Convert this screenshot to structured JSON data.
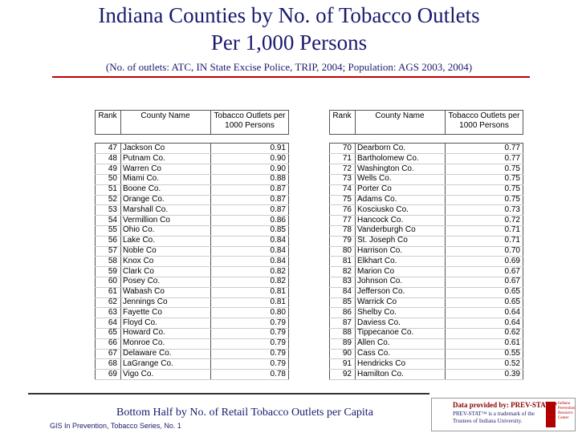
{
  "header": {
    "title_line1": "Indiana Counties by No. of Tobacco Outlets",
    "title_line2": "Per 1,000 Persons",
    "subtitle": "(No. of outlets:  ATC, IN State Excise Police, TRIP, 2004; Population: AGS 2003, 2004)"
  },
  "columns": [
    "Rank",
    "County Name",
    "Tobacco Outlets per 1000 Persons"
  ],
  "tables": [
    {
      "rows": [
        [
          47,
          "Jackson Co",
          "0.91"
        ],
        [
          48,
          "Putnam Co.",
          "0.90"
        ],
        [
          49,
          "Warren Co",
          "0.90"
        ],
        [
          50,
          "Miami Co.",
          "0.88"
        ],
        [
          51,
          "Boone Co.",
          "0.87"
        ],
        [
          52,
          "Orange Co.",
          "0.87"
        ],
        [
          53,
          "Marshall Co.",
          "0.87"
        ],
        [
          54,
          "Vermillion Co",
          "0.86"
        ],
        [
          55,
          "Ohio Co.",
          "0.85"
        ],
        [
          56,
          "Lake Co.",
          "0.84"
        ],
        [
          57,
          "Noble Co",
          "0.84"
        ],
        [
          58,
          "Knox Co",
          "0.84"
        ],
        [
          59,
          "Clark Co",
          "0.82"
        ],
        [
          60,
          "Posey Co.",
          "0.82"
        ],
        [
          61,
          "Wabash Co",
          "0.81"
        ],
        [
          62,
          "Jennings Co",
          "0.81"
        ],
        [
          63,
          "Fayette Co",
          "0.80"
        ],
        [
          64,
          "Floyd Co.",
          "0.79"
        ],
        [
          65,
          "Howard Co.",
          "0.79"
        ],
        [
          66,
          "Monroe Co.",
          "0.79"
        ],
        [
          67,
          "Delaware Co.",
          "0.79"
        ],
        [
          68,
          "LaGrange Co.",
          "0.79"
        ],
        [
          69,
          "Vigo Co.",
          "0.78"
        ]
      ]
    },
    {
      "rows": [
        [
          70,
          "Dearborn Co.",
          "0.77"
        ],
        [
          71,
          "Bartholomew Co.",
          "0.77"
        ],
        [
          72,
          "Washington Co.",
          "0.75"
        ],
        [
          73,
          "Wells Co.",
          "0.75"
        ],
        [
          74,
          "Porter Co",
          "0.75"
        ],
        [
          75,
          "Adams Co.",
          "0.75"
        ],
        [
          76,
          "Kosciusko Co.",
          "0.73"
        ],
        [
          77,
          "Hancock Co.",
          "0.72"
        ],
        [
          78,
          "Vanderburgh Co",
          "0.71"
        ],
        [
          79,
          "St. Joseph Co",
          "0.71"
        ],
        [
          80,
          "Harrison Co.",
          "0.70"
        ],
        [
          81,
          "Elkhart Co.",
          "0.69"
        ],
        [
          82,
          "Marion Co",
          "0.67"
        ],
        [
          83,
          "Johnson Co.",
          "0.67"
        ],
        [
          84,
          "Jefferson Co.",
          "0.65"
        ],
        [
          85,
          "Warrick Co",
          "0.65"
        ],
        [
          86,
          "Shelby Co.",
          "0.64"
        ],
        [
          87,
          "Daviess Co.",
          "0.64"
        ],
        [
          88,
          "Tippecanoe Co.",
          "0.62"
        ],
        [
          89,
          "Allen Co.",
          "0.61"
        ],
        [
          90,
          "Cass Co.",
          "0.55"
        ],
        [
          91,
          "Hendricks Co",
          "0.52"
        ],
        [
          92,
          "Hamilton Co.",
          "0.39"
        ]
      ]
    }
  ],
  "footer": {
    "caption": "Bottom Half by No. of Retail Tobacco Outlets per Capita",
    "series": "GIS In Prevention, Tobacco Series, No. 1",
    "provided": "Data provided by: PREV-STAT™",
    "trademark": "PREV-STAT™ is a trademark of the Trustees of Indiana University.",
    "logo": "Indiana Prevention Resource Center"
  }
}
